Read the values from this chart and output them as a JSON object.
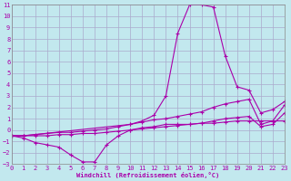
{
  "xlabel": "Windchill (Refroidissement éolien,°C)",
  "xlim": [
    0,
    23
  ],
  "ylim": [
    -3,
    11
  ],
  "xticks": [
    0,
    1,
    2,
    3,
    4,
    5,
    6,
    7,
    8,
    9,
    10,
    11,
    12,
    13,
    14,
    15,
    16,
    17,
    18,
    19,
    20,
    21,
    22,
    23
  ],
  "yticks": [
    -3,
    -2,
    -1,
    0,
    1,
    2,
    3,
    4,
    5,
    6,
    7,
    8,
    9,
    10,
    11
  ],
  "bg_color": "#c2e8ee",
  "line_color": "#aa00aa",
  "grid_color": "#aaaacc",
  "curves": [
    {
      "x": [
        0,
        1,
        2,
        3,
        4,
        5,
        6,
        7,
        8,
        9,
        10,
        11,
        12,
        13,
        14,
        15,
        16,
        17,
        18,
        19,
        20,
        21,
        22,
        23
      ],
      "y": [
        -0.5,
        -0.7,
        -1.1,
        -1.3,
        -1.5,
        -2.2,
        -2.8,
        -2.8,
        -1.3,
        -0.5,
        0.0,
        0.2,
        0.3,
        0.5,
        0.5,
        0.5,
        0.6,
        0.6,
        0.7,
        0.8,
        0.8,
        0.8,
        0.8,
        0.8
      ]
    },
    {
      "x": [
        0,
        1,
        2,
        3,
        4,
        5,
        6,
        7,
        8,
        9,
        10,
        11,
        12,
        13,
        14,
        15,
        16,
        17,
        18,
        19,
        20,
        21,
        22,
        23
      ],
      "y": [
        -0.5,
        -0.5,
        -0.5,
        -0.5,
        -0.4,
        -0.4,
        -0.3,
        -0.3,
        -0.2,
        -0.1,
        0.0,
        0.1,
        0.2,
        0.3,
        0.4,
        0.5,
        0.6,
        0.8,
        1.0,
        1.1,
        1.2,
        0.3,
        0.5,
        1.5
      ]
    },
    {
      "x": [
        0,
        1,
        2,
        3,
        4,
        5,
        6,
        7,
        8,
        9,
        10,
        11,
        12,
        13,
        14,
        15,
        16,
        17,
        18,
        19,
        20,
        21,
        22,
        23
      ],
      "y": [
        -0.5,
        -0.5,
        -0.4,
        -0.3,
        -0.2,
        -0.2,
        -0.1,
        0.0,
        0.1,
        0.3,
        0.5,
        0.7,
        0.9,
        1.0,
        1.2,
        1.4,
        1.6,
        2.0,
        2.3,
        2.5,
        2.7,
        0.5,
        0.8,
        2.2
      ]
    },
    {
      "x": [
        0,
        1,
        10,
        11,
        12,
        13,
        14,
        15,
        16,
        17,
        18,
        19,
        20,
        21,
        22,
        23
      ],
      "y": [
        -0.5,
        -0.5,
        0.5,
        0.8,
        1.3,
        3.0,
        8.5,
        11.0,
        11.0,
        10.8,
        6.5,
        3.8,
        3.5,
        1.5,
        1.8,
        2.5
      ]
    }
  ]
}
